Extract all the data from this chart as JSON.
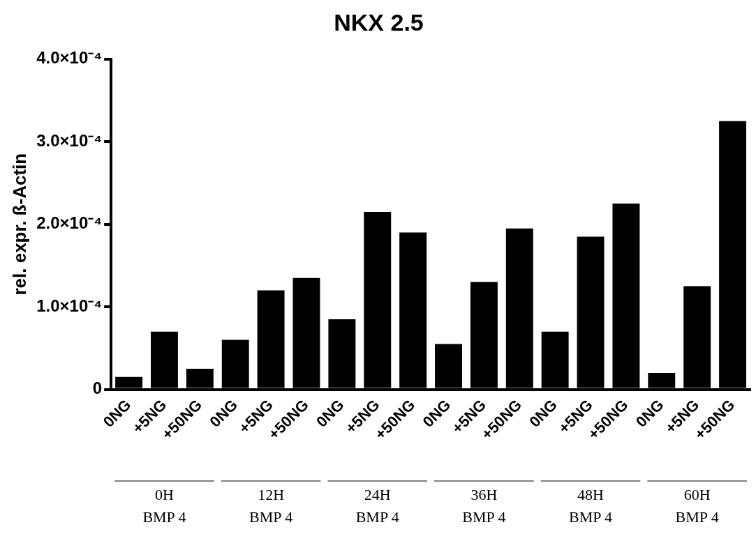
{
  "chart_data": {
    "type": "bar",
    "title": "NKX 2.5",
    "ylabel": "rel. expr. ß-Actin",
    "categories": [
      "0NG",
      "+5NG",
      "+50NG",
      "0NG",
      "+5NG",
      "+50NG",
      "0NG",
      "+5NG",
      "+50NG",
      "0NG",
      "+5NG",
      "+50NG",
      "0NG",
      "+5NG",
      "+50NG",
      "0NG",
      "+5NG",
      "+50NG"
    ],
    "series": [
      {
        "color": "#000000",
        "values": [
          1.5e-05,
          7e-05,
          2.5e-05,
          6e-05,
          0.00012,
          0.000135,
          8.5e-05,
          0.000215,
          0.00019,
          5.5e-05,
          0.00013,
          0.000195,
          7e-05,
          0.000185,
          0.000225,
          2e-05,
          0.000125,
          0.000325
        ]
      }
    ],
    "ylim": [
      0,
      0.0004
    ],
    "yticks": [
      {
        "value": 0,
        "label": "0"
      },
      {
        "value": 0.0001,
        "label": "1.0×10⁻⁴"
      },
      {
        "value": 0.0002,
        "label": "2.0×10⁻⁴"
      },
      {
        "value": 0.0003,
        "label": "3.0×10⁻⁴"
      },
      {
        "value": 0.0004,
        "label": "4.0×10⁻⁴"
      }
    ],
    "annotations": [
      "0H\nBMP 4",
      "12H\nBMP 4",
      "24H\nBMP 4",
      "36H\nBMP 4",
      "48H\nBMP 4",
      "60H\nBMP 4"
    ],
    "grid": false,
    "legend": false
  }
}
